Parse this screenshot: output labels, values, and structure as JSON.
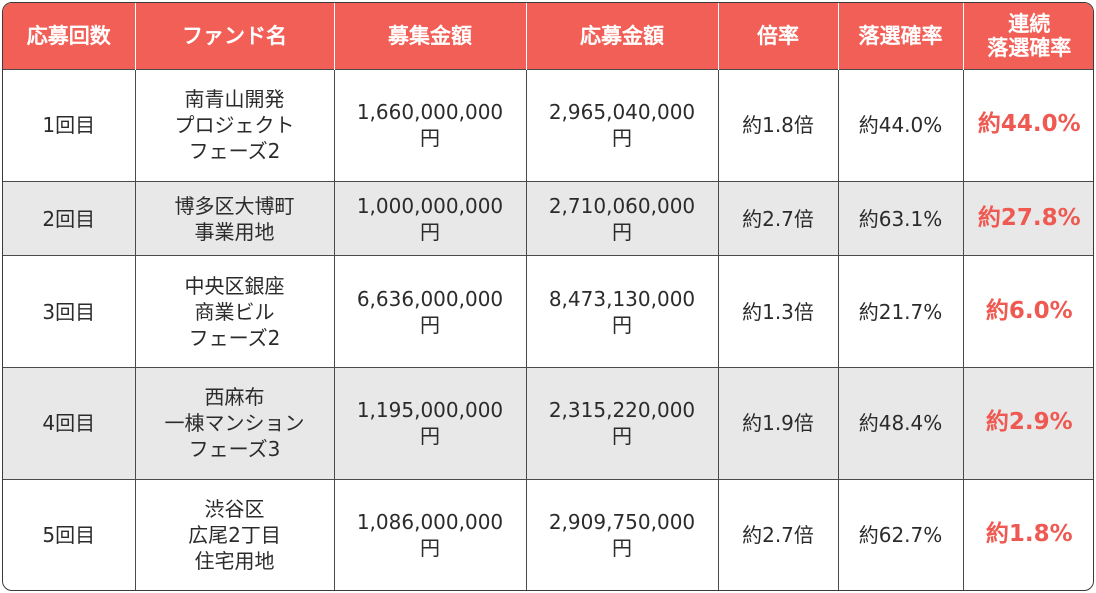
{
  "headers": {
    "round": "応募回数",
    "fund": "ファンド名",
    "raise": "募集金額",
    "applied": "応募金額",
    "ratio": "倍率",
    "loss": "落選確率",
    "streak_line1": "連続",
    "streak_line2": "落選確率"
  },
  "rows": [
    {
      "round": "1回目",
      "fund": [
        "南青山開発",
        "プロジェクト",
        "フェーズ2"
      ],
      "raise_num": "1,660,000,000",
      "raise_unit": "円",
      "applied_num": "2,965,040,000",
      "applied_unit": "円",
      "ratio": "約1.8倍",
      "loss": "約44.0%",
      "streak": "約44.0%"
    },
    {
      "round": "2回目",
      "fund": [
        "博多区大博町",
        "事業用地"
      ],
      "raise_num": "1,000,000,000",
      "raise_unit": "円",
      "applied_num": "2,710,060,000",
      "applied_unit": "円",
      "ratio": "約2.7倍",
      "loss": "約63.1%",
      "streak": "約27.8%"
    },
    {
      "round": "3回目",
      "fund": [
        "中央区銀座",
        "商業ビル",
        "フェーズ2"
      ],
      "raise_num": "6,636,000,000",
      "raise_unit": "円",
      "applied_num": "8,473,130,000",
      "applied_unit": "円",
      "ratio": "約1.3倍",
      "loss": "約21.7%",
      "streak": "約6.0%"
    },
    {
      "round": "4回目",
      "fund": [
        "西麻布",
        "一棟マンション",
        "フェーズ3"
      ],
      "raise_num": "1,195,000,000",
      "raise_unit": "円",
      "applied_num": "2,315,220,000",
      "applied_unit": "円",
      "ratio": "約1.9倍",
      "loss": "約48.4%",
      "streak": "約2.9%"
    },
    {
      "round": "5回目",
      "fund": [
        "渋谷区",
        "広尾2丁目",
        "住宅用地"
      ],
      "raise_num": "1,086,000,000",
      "raise_unit": "円",
      "applied_num": "2,909,750,000",
      "applied_unit": "円",
      "ratio": "約2.7倍",
      "loss": "約62.7%",
      "streak": "約1.8%"
    }
  ]
}
